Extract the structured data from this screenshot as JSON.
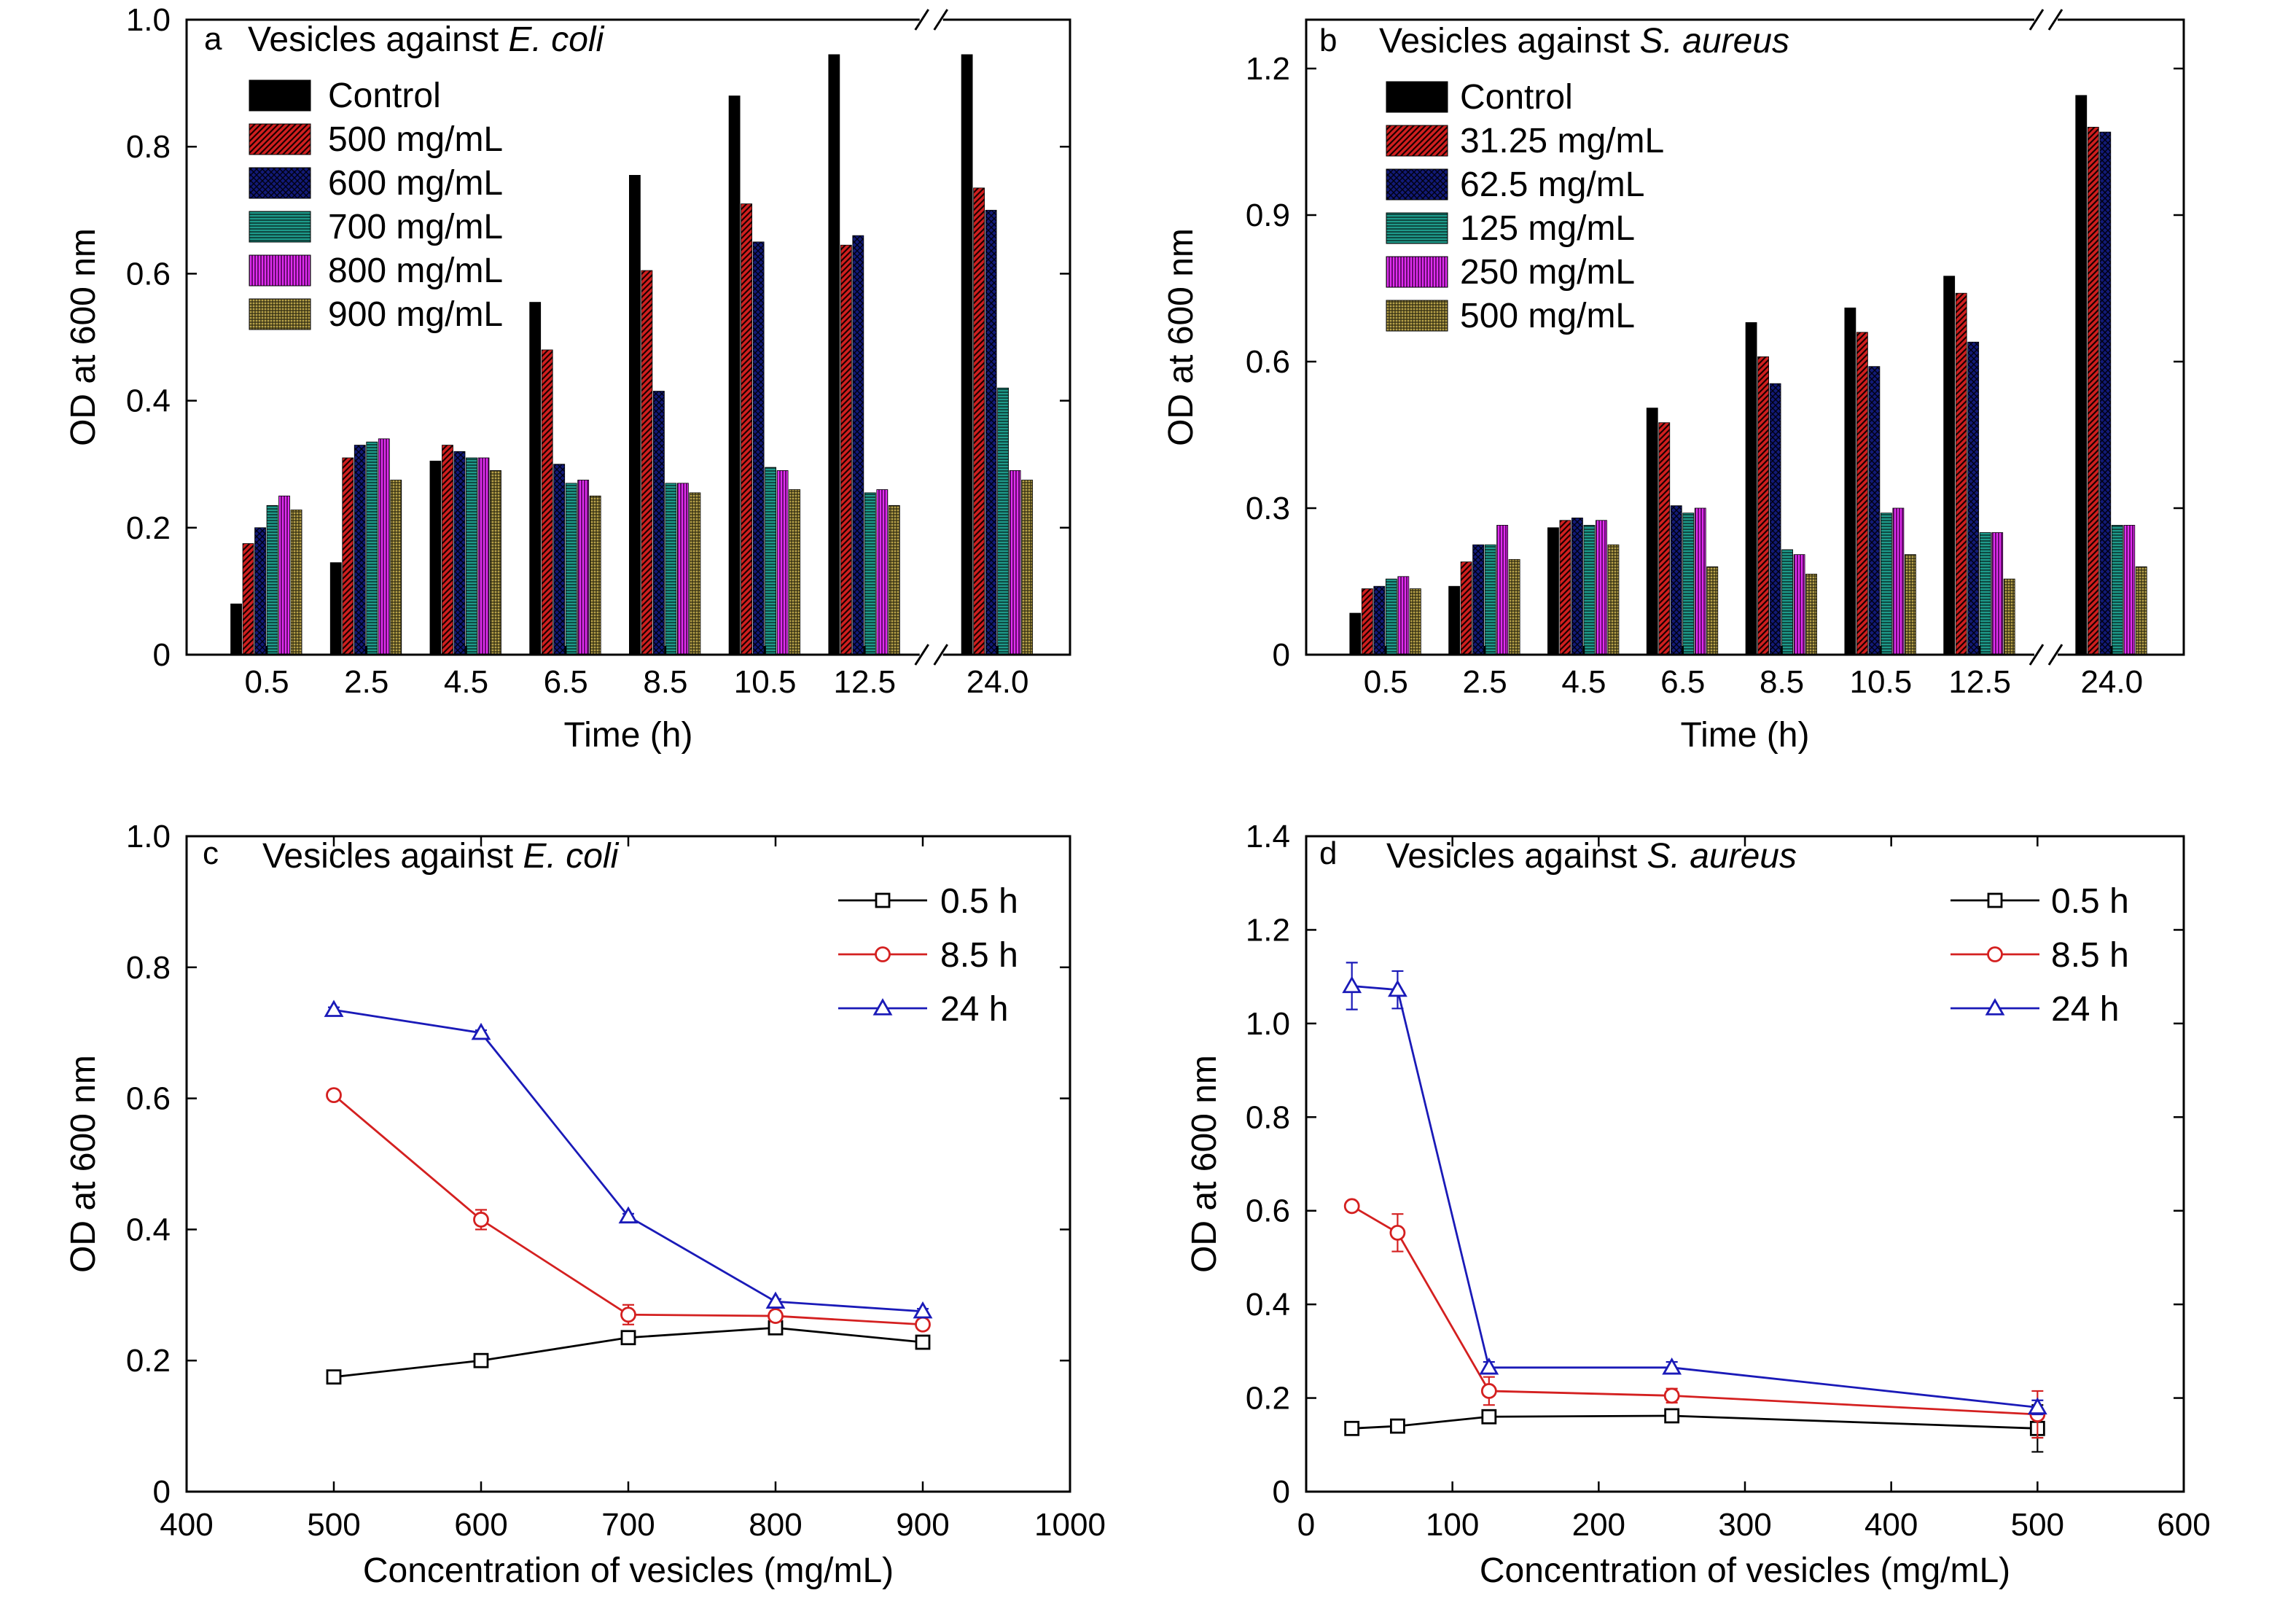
{
  "patterns": {
    "control": {
      "bg": "#000000",
      "fg": "#000000",
      "style": "solid"
    },
    "s1": {
      "bg": "#d11f1f",
      "fg": "#1a0000",
      "style": "diag"
    },
    "s2": {
      "bg": "#121a78",
      "fg": "#000010",
      "style": "cross"
    },
    "s3": {
      "bg": "#1e9a8a",
      "fg": "#08302b",
      "style": "hlines"
    },
    "s4": {
      "bg": "#e02ef0",
      "fg": "#4a0050",
      "style": "vlines"
    },
    "s5": {
      "bg": "#b8a24a",
      "fg": "#2e2a10",
      "style": "grid"
    }
  },
  "chart_data": [
    {
      "panel": "a",
      "type": "bar",
      "title_prefix": "Vesicles against ",
      "title_organism": "E. coli",
      "xlabel": "Time (h)",
      "ylabel": "OD at 600 nm",
      "ylim": [
        0,
        1.0
      ],
      "yticks": [
        0,
        0.2,
        0.4,
        0.6,
        0.8,
        1.0
      ],
      "ytick_labels": [
        "0",
        "0.2",
        "0.4",
        "0.6",
        "0.8",
        "1.0"
      ],
      "categories": [
        "0.5",
        "2.5",
        "4.5",
        "6.5",
        "8.5",
        "10.5",
        "12.5",
        "24.0"
      ],
      "axis_break": true,
      "series": [
        {
          "name": "Control",
          "pattern": "control",
          "values": [
            0.08,
            0.145,
            0.305,
            0.555,
            0.755,
            0.88,
            0.945,
            0.945
          ]
        },
        {
          "name": "500 mg/mL",
          "pattern": "s1",
          "values": [
            0.175,
            0.31,
            0.33,
            0.48,
            0.605,
            0.71,
            0.645,
            0.735
          ]
        },
        {
          "name": "600 mg/mL",
          "pattern": "s2",
          "values": [
            0.2,
            0.33,
            0.32,
            0.3,
            0.415,
            0.65,
            0.66,
            0.7
          ]
        },
        {
          "name": "700 mg/mL",
          "pattern": "s3",
          "values": [
            0.235,
            0.335,
            0.31,
            0.27,
            0.27,
            0.295,
            0.255,
            0.42
          ]
        },
        {
          "name": "800 mg/mL",
          "pattern": "s4",
          "values": [
            0.25,
            0.34,
            0.31,
            0.275,
            0.27,
            0.29,
            0.26,
            0.29
          ]
        },
        {
          "name": "900 mg/mL",
          "pattern": "s5",
          "values": [
            0.228,
            0.275,
            0.29,
            0.25,
            0.255,
            0.26,
            0.235,
            0.275
          ]
        }
      ]
    },
    {
      "panel": "b",
      "type": "bar",
      "title_prefix": "Vesicles against ",
      "title_organism": "S. aureus",
      "xlabel": "Time (h)",
      "ylabel": "OD at 600 nm",
      "ylim": [
        0,
        1.3
      ],
      "yticks": [
        0,
        0.3,
        0.6,
        0.9,
        1.2
      ],
      "ytick_labels": [
        "0",
        "0.3",
        "0.6",
        "0.9",
        "1.2"
      ],
      "categories": [
        "0.5",
        "2.5",
        "4.5",
        "6.5",
        "8.5",
        "10.5",
        "12.5",
        "24.0"
      ],
      "axis_break": true,
      "series": [
        {
          "name": "Control",
          "pattern": "control",
          "values": [
            0.085,
            0.14,
            0.26,
            0.505,
            0.68,
            0.71,
            0.775,
            1.145
          ]
        },
        {
          "name": "31.25 mg/mL",
          "pattern": "s1",
          "values": [
            0.135,
            0.19,
            0.275,
            0.475,
            0.61,
            0.66,
            0.74,
            1.08
          ]
        },
        {
          "name": "62.5 mg/mL",
          "pattern": "s2",
          "values": [
            0.14,
            0.225,
            0.28,
            0.305,
            0.555,
            0.59,
            0.64,
            1.07
          ]
        },
        {
          "name": "125 mg/mL",
          "pattern": "s3",
          "values": [
            0.155,
            0.225,
            0.265,
            0.29,
            0.215,
            0.29,
            0.25,
            0.265
          ]
        },
        {
          "name": "250 mg/mL",
          "pattern": "s4",
          "values": [
            0.16,
            0.265,
            0.275,
            0.3,
            0.205,
            0.3,
            0.25,
            0.265
          ]
        },
        {
          "name": "500 mg/mL",
          "pattern": "s5",
          "values": [
            0.135,
            0.195,
            0.225,
            0.18,
            0.165,
            0.205,
            0.155,
            0.18
          ]
        }
      ]
    },
    {
      "panel": "c",
      "type": "line",
      "title_prefix": "Vesicles against ",
      "title_organism": "E. coli",
      "xlabel": "Concentration of vesicles (mg/mL)",
      "ylabel": "OD at 600 nm",
      "xlim": [
        400,
        1000
      ],
      "ylim": [
        0,
        1.0
      ],
      "xticks": [
        400,
        500,
        600,
        700,
        800,
        900,
        1000
      ],
      "yticks": [
        0,
        0.2,
        0.4,
        0.6,
        0.8,
        1.0
      ],
      "ytick_labels": [
        "0",
        "0.2",
        "0.4",
        "0.6",
        "0.8",
        "1.0"
      ],
      "series": [
        {
          "name": "0.5  h",
          "color": "#000000",
          "marker": "square",
          "x": [
            500,
            600,
            700,
            800,
            900
          ],
          "y": [
            0.175,
            0.2,
            0.235,
            0.25,
            0.228
          ],
          "err": [
            0.004,
            0.004,
            0.006,
            0.006,
            0.006
          ]
        },
        {
          "name": "8.5  h",
          "color": "#d42020",
          "marker": "circle",
          "x": [
            500,
            600,
            700,
            800,
            900
          ],
          "y": [
            0.605,
            0.415,
            0.27,
            0.268,
            0.255
          ],
          "err": [
            0.005,
            0.015,
            0.015,
            0.008,
            0.006
          ]
        },
        {
          "name": "24  h",
          "color": "#1a1ab8",
          "marker": "triangle",
          "x": [
            500,
            600,
            700,
            800,
            900
          ],
          "y": [
            0.735,
            0.7,
            0.42,
            0.29,
            0.275
          ],
          "err": [
            0.004,
            0.004,
            0.004,
            0.004,
            0.004
          ]
        }
      ]
    },
    {
      "panel": "d",
      "type": "line",
      "title_prefix": "Vesicles against ",
      "title_organism": "S. aureus",
      "xlabel": "Concentration of vesicles (mg/mL)",
      "ylabel": "OD at 600 nm",
      "xlim": [
        0,
        600
      ],
      "ylim": [
        0,
        1.4
      ],
      "xticks": [
        0,
        100,
        200,
        300,
        400,
        500,
        600
      ],
      "yticks": [
        0,
        0.2,
        0.4,
        0.6,
        0.8,
        1.0,
        1.2,
        1.4
      ],
      "ytick_labels": [
        "0",
        "0.2",
        "0.4",
        "0.6",
        "0.8",
        "1.0",
        "1.2",
        "1.4"
      ],
      "series": [
        {
          "name": "0.5  h",
          "color": "#000000",
          "marker": "square",
          "x": [
            31.25,
            62.5,
            125,
            250,
            500
          ],
          "y": [
            0.135,
            0.14,
            0.16,
            0.162,
            0.135
          ],
          "err": [
            0.008,
            0.01,
            0.012,
            0.01,
            0.05
          ]
        },
        {
          "name": "8.5  h",
          "color": "#d42020",
          "marker": "circle",
          "x": [
            31.25,
            62.5,
            125,
            250,
            500
          ],
          "y": [
            0.61,
            0.553,
            0.215,
            0.205,
            0.165
          ],
          "err": [
            0.008,
            0.04,
            0.03,
            0.015,
            0.05
          ]
        },
        {
          "name": "24  h",
          "color": "#1a1ab8",
          "marker": "triangle",
          "x": [
            31.25,
            62.5,
            125,
            250,
            500
          ],
          "y": [
            1.08,
            1.072,
            0.265,
            0.265,
            0.18
          ],
          "err": [
            0.05,
            0.04,
            0.012,
            0.012,
            0.015
          ]
        }
      ]
    }
  ]
}
